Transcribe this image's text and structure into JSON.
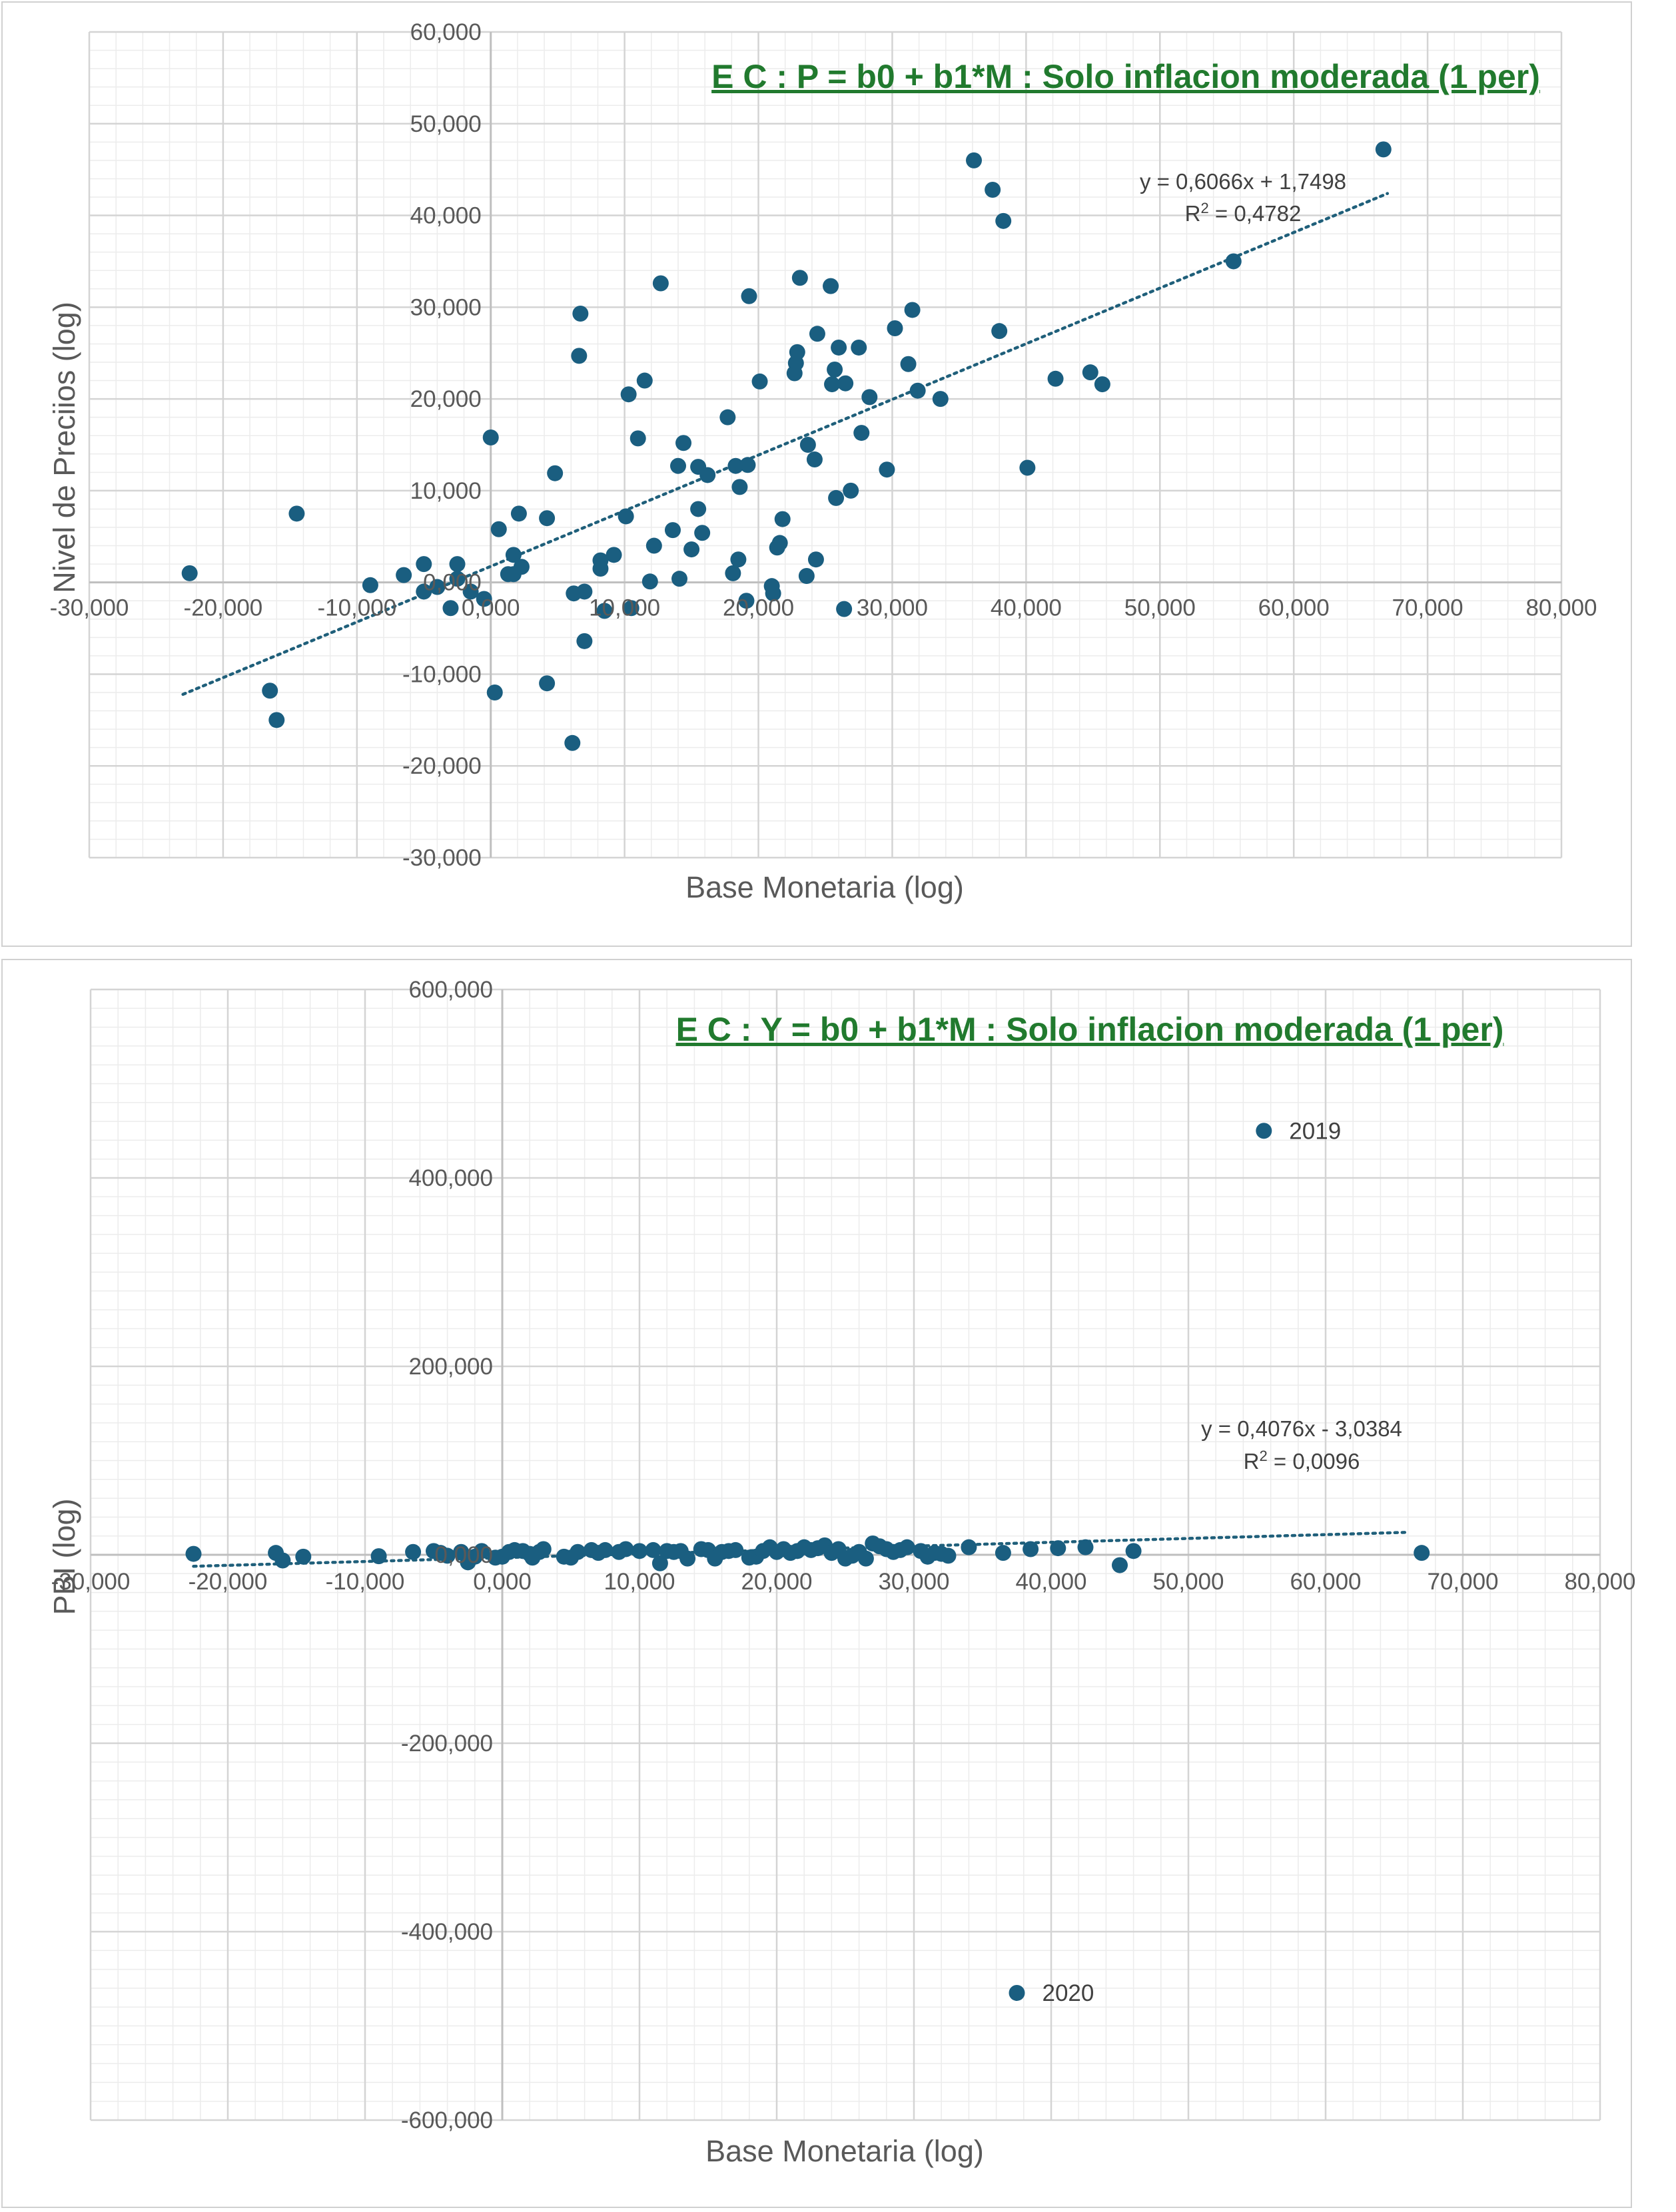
{
  "chart_data": [
    {
      "type": "scatter",
      "title": "E C : P = b0 + b1*M : Solo inflacion moderada (1 per)",
      "xlabel": "Base Monetaria (log)",
      "ylabel": "Nivel de Preciios (log)",
      "xlim": [
        -30000,
        80000
      ],
      "ylim": [
        -30000,
        60000
      ],
      "x_ticks": [
        "-30,000",
        "-20,000",
        "-10,000",
        "0,000",
        "10,000",
        "20,000",
        "30,000",
        "40,000",
        "50,000",
        "60,000",
        "70,000",
        "80,000"
      ],
      "y_ticks": [
        "60,000",
        "50,000",
        "40,000",
        "30,000",
        "20,000",
        "10,000",
        "0,000",
        "-10,000",
        "-20,000",
        "-30,000"
      ],
      "grid": true,
      "marker_color": "#1a5e80",
      "trendline": {
        "slope": 0.6066,
        "intercept": 1749.8,
        "x_range": [
          -23000,
          67000
        ],
        "equation": "y = 0,6066x + 1,7498",
        "r2_prefix": "R",
        "r2_sup": "2",
        "r2_value": " = 0,4782"
      },
      "points": [
        [
          -22500,
          1000
        ],
        [
          -16500,
          -11800
        ],
        [
          -16000,
          -15000
        ],
        [
          -14500,
          7500
        ],
        [
          -9000,
          -300
        ],
        [
          -6500,
          800
        ],
        [
          -5000,
          2000
        ],
        [
          -5000,
          -1000
        ],
        [
          -4000,
          -500
        ],
        [
          -3000,
          -2800
        ],
        [
          -2500,
          2000
        ],
        [
          -2500,
          400
        ],
        [
          -1500,
          -1000
        ],
        [
          -500,
          -1800
        ],
        [
          0,
          15800
        ],
        [
          300,
          -12000
        ],
        [
          600,
          5800
        ],
        [
          1300,
          900
        ],
        [
          1700,
          3000
        ],
        [
          1700,
          900
        ],
        [
          2100,
          7500
        ],
        [
          2300,
          1700
        ],
        [
          4200,
          7000
        ],
        [
          4200,
          -11000
        ],
        [
          4800,
          11900
        ],
        [
          6100,
          -17500
        ],
        [
          6200,
          -1200
        ],
        [
          6600,
          24700
        ],
        [
          6700,
          29300
        ],
        [
          7000,
          -1000
        ],
        [
          7000,
          -6400
        ],
        [
          8200,
          2400
        ],
        [
          8200,
          1500
        ],
        [
          8500,
          -3100
        ],
        [
          9200,
          3000
        ],
        [
          10100,
          7200
        ],
        [
          10300,
          20500
        ],
        [
          10500,
          -2800
        ],
        [
          11000,
          15700
        ],
        [
          11500,
          22000
        ],
        [
          11900,
          100
        ],
        [
          12200,
          4000
        ],
        [
          12700,
          32600
        ],
        [
          13600,
          5700
        ],
        [
          14000,
          12700
        ],
        [
          14100,
          400
        ],
        [
          14400,
          15200
        ],
        [
          15000,
          3600
        ],
        [
          15500,
          12600
        ],
        [
          15500,
          8000
        ],
        [
          15800,
          5400
        ],
        [
          16200,
          11700
        ],
        [
          17700,
          18000
        ],
        [
          18100,
          1000
        ],
        [
          18300,
          12700
        ],
        [
          18500,
          2500
        ],
        [
          18600,
          10400
        ],
        [
          19100,
          -2000
        ],
        [
          19200,
          12800
        ],
        [
          19300,
          31200
        ],
        [
          20100,
          21900
        ],
        [
          21000,
          -400
        ],
        [
          21100,
          -1200
        ],
        [
          21400,
          3800
        ],
        [
          21600,
          4300
        ],
        [
          21800,
          6900
        ],
        [
          22700,
          22800
        ],
        [
          22800,
          23900
        ],
        [
          22900,
          25100
        ],
        [
          23100,
          33200
        ],
        [
          23600,
          700
        ],
        [
          23700,
          15000
        ],
        [
          24200,
          13400
        ],
        [
          24300,
          2500
        ],
        [
          24400,
          27100
        ],
        [
          25400,
          32300
        ],
        [
          25500,
          21600
        ],
        [
          25700,
          23200
        ],
        [
          25800,
          9200
        ],
        [
          26000,
          25600
        ],
        [
          26400,
          -2900
        ],
        [
          26500,
          21700
        ],
        [
          26900,
          10000
        ],
        [
          27500,
          25600
        ],
        [
          27700,
          16300
        ],
        [
          28300,
          20200
        ],
        [
          29600,
          12300
        ],
        [
          30200,
          27700
        ],
        [
          31200,
          23800
        ],
        [
          31500,
          29700
        ],
        [
          31900,
          20900
        ],
        [
          33600,
          20000
        ],
        [
          36100,
          46000
        ],
        [
          37500,
          42800
        ],
        [
          38000,
          27400
        ],
        [
          38300,
          39400
        ],
        [
          40100,
          12500
        ],
        [
          42200,
          22200
        ],
        [
          44800,
          22900
        ],
        [
          45700,
          21600
        ],
        [
          55500,
          35000
        ],
        [
          66700,
          47200
        ]
      ]
    },
    {
      "type": "scatter",
      "title": "E C : Y = b0 + b1*M : Solo inflacion moderada (1 per)",
      "xlabel": "Base Monetaria (log)",
      "ylabel": "PBI  (log)",
      "xlim": [
        -30000,
        80000
      ],
      "ylim": [
        -600000,
        600000
      ],
      "x_ticks": [
        "-30,000",
        "-20,000",
        "-10,000",
        "0,000",
        "10,000",
        "20,000",
        "30,000",
        "40,000",
        "50,000",
        "60,000",
        "70,000",
        "80,000"
      ],
      "y_ticks": [
        "600,000",
        "400,000",
        "200,000",
        "0,000",
        "-200,000",
        "-400,000",
        "-600,000"
      ],
      "grid": true,
      "marker_color": "#1a5e80",
      "trendline": {
        "slope": 0.4076,
        "intercept": -3038.4,
        "x_range": [
          -22500,
          66000
        ],
        "equation": "y = 0,4076x - 3,0384",
        "r2_prefix": "R",
        "r2_sup": "2",
        "r2_value": " = 0,0096"
      },
      "labeled_points": [
        {
          "label": "2019",
          "x": 55500,
          "y": 450000
        },
        {
          "label": "2020",
          "x": 37500,
          "y": -465000
        }
      ],
      "points": [
        [
          -22500,
          1000
        ],
        [
          -16500,
          2000
        ],
        [
          -16000,
          -6000
        ],
        [
          -14500,
          -2000
        ],
        [
          -9000,
          -1500
        ],
        [
          -6500,
          3000
        ],
        [
          -5000,
          4000
        ],
        [
          -4500,
          2000
        ],
        [
          -4000,
          -1000
        ],
        [
          -3000,
          3000
        ],
        [
          -2500,
          -8000
        ],
        [
          -2000,
          -2000
        ],
        [
          -1500,
          4000
        ],
        [
          -500,
          -3000
        ],
        [
          0,
          -2000
        ],
        [
          500,
          3000
        ],
        [
          900,
          5000
        ],
        [
          1500,
          4000
        ],
        [
          2000,
          1000
        ],
        [
          2200,
          -3000
        ],
        [
          2700,
          3000
        ],
        [
          3000,
          6000
        ],
        [
          4500,
          -2000
        ],
        [
          5000,
          -3000
        ],
        [
          5500,
          3000
        ],
        [
          6500,
          5000
        ],
        [
          7000,
          2000
        ],
        [
          7500,
          5000
        ],
        [
          8500,
          3000
        ],
        [
          9000,
          6000
        ],
        [
          10000,
          4000
        ],
        [
          11000,
          5000
        ],
        [
          11500,
          -9000
        ],
        [
          12000,
          4000
        ],
        [
          12500,
          3000
        ],
        [
          13000,
          4000
        ],
        [
          13500,
          -4000
        ],
        [
          14500,
          6000
        ],
        [
          15000,
          5000
        ],
        [
          15500,
          -4000
        ],
        [
          16000,
          3000
        ],
        [
          16500,
          4000
        ],
        [
          17000,
          5000
        ],
        [
          18000,
          -3000
        ],
        [
          18500,
          -2000
        ],
        [
          19000,
          4000
        ],
        [
          19500,
          8000
        ],
        [
          20000,
          3000
        ],
        [
          20500,
          6000
        ],
        [
          21000,
          2000
        ],
        [
          21500,
          4000
        ],
        [
          22000,
          8000
        ],
        [
          22500,
          5000
        ],
        [
          23000,
          7000
        ],
        [
          23500,
          10000
        ],
        [
          24000,
          2000
        ],
        [
          24500,
          6000
        ],
        [
          25000,
          -4000
        ],
        [
          25500,
          -1000
        ],
        [
          26000,
          3000
        ],
        [
          26500,
          -4000
        ],
        [
          27000,
          12000
        ],
        [
          27500,
          9000
        ],
        [
          28000,
          6000
        ],
        [
          28500,
          3000
        ],
        [
          29000,
          5000
        ],
        [
          29500,
          8000
        ],
        [
          30500,
          4000
        ],
        [
          31000,
          -2000
        ],
        [
          31500,
          2000
        ],
        [
          32000,
          1000
        ],
        [
          32500,
          -1000
        ],
        [
          34000,
          8000
        ],
        [
          36500,
          2000
        ],
        [
          38500,
          6000
        ],
        [
          40500,
          7000
        ],
        [
          42500,
          8000
        ],
        [
          45000,
          -11000
        ],
        [
          46000,
          4000
        ],
        [
          67000,
          2000
        ]
      ]
    }
  ]
}
